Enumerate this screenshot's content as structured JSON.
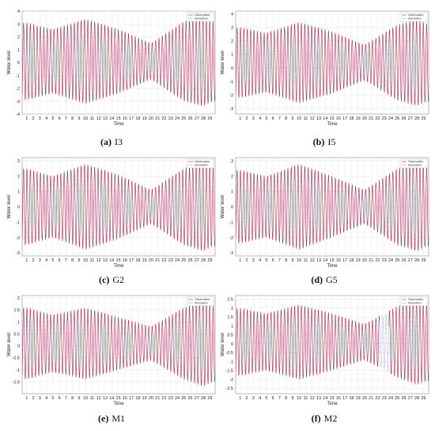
{
  "chart_data": [
    {
      "type": "line",
      "caption_letter": "(a)",
      "caption_name": "I3",
      "xlabel": "Time",
      "ylabel": "Water level",
      "x_ticks": [
        "1",
        "2",
        "3",
        "4",
        "5",
        "6",
        "7",
        "8",
        "9",
        "10",
        "11",
        "12",
        "13",
        "14",
        "15",
        "16",
        "17",
        "18",
        "19",
        "20",
        "21",
        "22",
        "23",
        "24",
        "25",
        "26",
        "27",
        "28",
        "29"
      ],
      "y_ticks": [
        -4,
        -3,
        -2,
        -1,
        0,
        1,
        2,
        3,
        4
      ],
      "ylim": [
        -4,
        4
      ],
      "xlim": [
        0.3,
        29.8
      ],
      "legend": [
        "Observation",
        "Simulation"
      ],
      "legend_position": "top-right",
      "grid": true,
      "series": [
        {
          "name": "Observation",
          "color": "#cc2b2b",
          "style": "solid",
          "envelope_days": [
            1,
            5,
            10,
            15,
            20,
            25,
            28,
            29.5
          ],
          "envelope_amplitude": [
            3.0,
            2.5,
            3.3,
            2.5,
            1.4,
            3.1,
            3.5,
            3.1
          ],
          "mean_level": 0.1
        },
        {
          "name": "Simulation",
          "color": "#3333cc",
          "style": "dotted",
          "envelope_days": [
            1,
            5,
            10,
            15,
            20,
            25,
            28,
            29.5
          ],
          "envelope_amplitude": [
            2.9,
            2.4,
            3.2,
            2.4,
            1.3,
            3.0,
            3.4,
            3.0
          ],
          "mean_level": 0.1
        }
      ]
    },
    {
      "type": "line",
      "caption_letter": "(b)",
      "caption_name": "I5",
      "xlabel": "Time",
      "ylabel": "Water level",
      "x_ticks": [
        "1",
        "2",
        "3",
        "4",
        "5",
        "6",
        "7",
        "8",
        "9",
        "10",
        "11",
        "12",
        "13",
        "14",
        "15",
        "16",
        "17",
        "18",
        "19",
        "20",
        "21",
        "22",
        "23",
        "24",
        "25",
        "26",
        "27",
        "28",
        "29"
      ],
      "y_ticks": [
        -3,
        -2,
        -1,
        0,
        1,
        2,
        3,
        4
      ],
      "ylim": [
        -3.4,
        4.2
      ],
      "xlim": [
        0.3,
        29.8
      ],
      "legend": [
        "Observation",
        "Simulation"
      ],
      "legend_position": "top-right",
      "grid": true,
      "series": [
        {
          "name": "Observation",
          "color": "#cc2b2b",
          "style": "solid",
          "envelope_days": [
            1,
            5,
            10,
            15,
            20,
            25,
            28,
            29.5
          ],
          "envelope_amplitude": [
            2.6,
            2.2,
            3.0,
            2.3,
            1.3,
            2.8,
            3.2,
            2.9
          ],
          "mean_level": 0.4
        },
        {
          "name": "Simulation",
          "color": "#3333cc",
          "style": "dotted",
          "envelope_days": [
            1,
            5,
            10,
            15,
            20,
            25,
            28,
            29.5
          ],
          "envelope_amplitude": [
            2.5,
            2.1,
            2.9,
            2.2,
            1.2,
            2.7,
            3.1,
            2.8
          ],
          "mean_level": 0.4
        }
      ]
    },
    {
      "type": "line",
      "caption_letter": "(c)",
      "caption_name": "G2",
      "xlabel": "Time",
      "ylabel": "Water level",
      "x_ticks": [
        "1",
        "2",
        "3",
        "4",
        "5",
        "6",
        "7",
        "8",
        "9",
        "10",
        "11",
        "12",
        "13",
        "14",
        "15",
        "16",
        "17",
        "18",
        "19",
        "20",
        "21",
        "22",
        "23",
        "24",
        "25",
        "26",
        "27",
        "28",
        "29"
      ],
      "y_ticks": [
        -3,
        -2,
        -1,
        0,
        1,
        2,
        3
      ],
      "ylim": [
        -3.2,
        3.2
      ],
      "xlim": [
        0.3,
        29.8
      ],
      "legend": [
        "Observation",
        "Simulation"
      ],
      "legend_position": "top-right",
      "grid": true,
      "series": [
        {
          "name": "Observation",
          "color": "#cc2b2b",
          "style": "solid",
          "envelope_days": [
            1,
            5,
            10,
            15,
            20,
            25,
            28,
            29.5
          ],
          "envelope_amplitude": [
            2.5,
            2.0,
            2.8,
            2.1,
            1.1,
            2.5,
            2.9,
            2.6
          ],
          "mean_level": 0.0
        },
        {
          "name": "Simulation",
          "color": "#3333cc",
          "style": "dotted",
          "envelope_days": [
            1,
            5,
            10,
            15,
            20,
            25,
            28,
            29.5
          ],
          "envelope_amplitude": [
            2.4,
            1.9,
            2.7,
            2.0,
            1.0,
            2.4,
            2.8,
            2.5
          ],
          "mean_level": 0.0
        }
      ]
    },
    {
      "type": "line",
      "caption_letter": "(d)",
      "caption_name": "G5",
      "xlabel": "Time",
      "ylabel": "Water level",
      "x_ticks": [
        "1",
        "2",
        "3",
        "4",
        "5",
        "6",
        "7",
        "8",
        "9",
        "10",
        "11",
        "12",
        "13",
        "14",
        "15",
        "16",
        "17",
        "18",
        "19",
        "20",
        "21",
        "22",
        "23",
        "24",
        "25",
        "26",
        "27",
        "28",
        "29"
      ],
      "y_ticks": [
        -3,
        -2,
        -1,
        0,
        1,
        2,
        3
      ],
      "ylim": [
        -3.2,
        3.2
      ],
      "xlim": [
        0.3,
        29.8
      ],
      "legend": [
        "Observation",
        "Simulation"
      ],
      "legend_position": "top-right",
      "grid": true,
      "series": [
        {
          "name": "Observation",
          "color": "#cc2b2b",
          "style": "solid",
          "envelope_days": [
            1,
            5,
            10,
            15,
            20,
            25,
            28,
            29.5
          ],
          "envelope_amplitude": [
            2.4,
            2.0,
            2.8,
            2.0,
            1.1,
            2.5,
            2.9,
            2.6
          ],
          "mean_level": 0.0
        },
        {
          "name": "Simulation",
          "color": "#3333cc",
          "style": "dotted",
          "envelope_days": [
            1,
            5,
            10,
            15,
            20,
            25,
            28,
            29.5
          ],
          "envelope_amplitude": [
            2.3,
            1.9,
            2.7,
            1.9,
            1.0,
            2.4,
            2.8,
            2.5
          ],
          "mean_level": 0.0
        }
      ]
    },
    {
      "type": "line",
      "caption_letter": "(e)",
      "caption_name": "M1",
      "xlabel": "Time",
      "ylabel": "Water level",
      "x_ticks": [
        "1",
        "2",
        "3",
        "4",
        "5",
        "6",
        "7",
        "8",
        "9",
        "10",
        "11",
        "12",
        "13",
        "14",
        "15",
        "16",
        "17",
        "18",
        "19",
        "20",
        "21",
        "22",
        "23",
        "24",
        "25",
        "26",
        "27",
        "28",
        "29"
      ],
      "y_ticks": [
        -1.5,
        -1,
        -0.5,
        0,
        0.5,
        1,
        1.5,
        2
      ],
      "ylim": [
        -2,
        2.1
      ],
      "xlim": [
        0.3,
        29.8
      ],
      "legend": [
        "Observation",
        "Simulation"
      ],
      "legend_position": "top-right",
      "grid": true,
      "series": [
        {
          "name": "Observation",
          "color": "#cc2b2b",
          "style": "solid",
          "envelope_days": [
            1,
            5,
            10,
            15,
            20,
            25,
            28,
            29.5
          ],
          "envelope_amplitude": [
            1.5,
            1.2,
            1.5,
            1.1,
            0.7,
            1.5,
            1.8,
            1.6
          ],
          "mean_level": 0.1
        },
        {
          "name": "Simulation",
          "color": "#3333cc",
          "style": "dotted",
          "envelope_days": [
            1,
            5,
            10,
            15,
            20,
            25,
            28,
            29.5
          ],
          "envelope_amplitude": [
            1.4,
            1.1,
            1.4,
            1.0,
            0.6,
            1.4,
            1.7,
            1.5
          ],
          "mean_level": 0.1
        }
      ]
    },
    {
      "type": "line",
      "caption_letter": "(f)",
      "caption_name": "M2",
      "xlabel": "Time",
      "ylabel": "Water level",
      "x_ticks": [
        "1",
        "2",
        "3",
        "4",
        "5",
        "6",
        "7",
        "8",
        "9",
        "10",
        "11",
        "12",
        "13",
        "14",
        "15",
        "16",
        "17",
        "18",
        "19",
        "20",
        "21",
        "22",
        "23",
        "24",
        "25",
        "26",
        "27",
        "28",
        "29"
      ],
      "y_ticks": [
        -2.5,
        -2,
        -1.5,
        -1,
        -0.5,
        0,
        0.5,
        1,
        1.5,
        2,
        2.5
      ],
      "ylim": [
        -2.8,
        2.7
      ],
      "xlim": [
        0.3,
        29.8
      ],
      "legend": [
        "Observation",
        "Simulation"
      ],
      "legend_position": "top-right",
      "grid": true,
      "series": [
        {
          "name": "Observation",
          "color": "#cc2b2b",
          "style": "solid",
          "envelope_days": [
            1,
            5,
            10,
            15,
            20,
            25,
            28,
            29.5
          ],
          "envelope_amplitude": [
            1.9,
            1.6,
            2.1,
            1.6,
            1.0,
            2.0,
            2.4,
            2.2
          ],
          "mean_level": 0.1,
          "gap_days": [
            [
              22.3,
              23.7
            ]
          ]
        },
        {
          "name": "Simulation",
          "color": "#3333cc",
          "style": "dotted",
          "envelope_days": [
            1,
            5,
            10,
            15,
            20,
            25,
            28,
            29.5
          ],
          "envelope_amplitude": [
            1.8,
            1.5,
            2.0,
            1.5,
            0.9,
            1.9,
            2.3,
            2.1
          ],
          "mean_level": 0.1
        }
      ]
    }
  ]
}
